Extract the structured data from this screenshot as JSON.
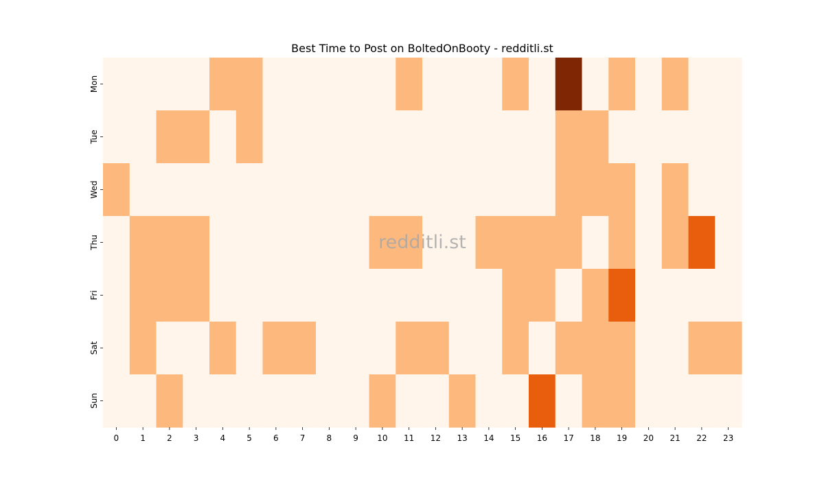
{
  "chart_data": {
    "type": "heatmap",
    "title": "Best Time to Post on BoltedOnBooty - redditli.st",
    "watermark": "redditli.st",
    "xlabel": "",
    "ylabel": "",
    "x": [
      "0",
      "1",
      "2",
      "3",
      "4",
      "5",
      "6",
      "7",
      "8",
      "9",
      "10",
      "11",
      "12",
      "13",
      "14",
      "15",
      "16",
      "17",
      "18",
      "19",
      "20",
      "21",
      "22",
      "23"
    ],
    "y": [
      "Mon",
      "Tue",
      "Wed",
      "Thu",
      "Fri",
      "Sat",
      "Sun"
    ],
    "values": [
      [
        0,
        0,
        0,
        0,
        1,
        1,
        0,
        0,
        0,
        0,
        0,
        1,
        0,
        0,
        0,
        1,
        0,
        4,
        0,
        1,
        0,
        1,
        0,
        0
      ],
      [
        0,
        0,
        1,
        1,
        0,
        1,
        0,
        0,
        0,
        0,
        0,
        0,
        0,
        0,
        0,
        0,
        0,
        1,
        1,
        0,
        0,
        0,
        0,
        0
      ],
      [
        1,
        0,
        0,
        0,
        0,
        0,
        0,
        0,
        0,
        0,
        0,
        0,
        0,
        0,
        0,
        0,
        0,
        1,
        1,
        1,
        0,
        1,
        0,
        0
      ],
      [
        0,
        1,
        1,
        1,
        0,
        0,
        0,
        0,
        0,
        0,
        1,
        1,
        0,
        0,
        1,
        1,
        1,
        1,
        0,
        1,
        0,
        1,
        2,
        0
      ],
      [
        0,
        1,
        1,
        1,
        0,
        0,
        0,
        0,
        0,
        0,
        0,
        0,
        0,
        0,
        0,
        1,
        1,
        0,
        1,
        2,
        0,
        0,
        0,
        0
      ],
      [
        0,
        1,
        0,
        0,
        1,
        0,
        1,
        1,
        0,
        0,
        0,
        1,
        1,
        0,
        0,
        1,
        0,
        1,
        1,
        1,
        0,
        0,
        1,
        1
      ],
      [
        0,
        0,
        1,
        0,
        0,
        0,
        0,
        0,
        0,
        0,
        1,
        0,
        0,
        1,
        0,
        0,
        2,
        0,
        1,
        1,
        0,
        0,
        0,
        0
      ]
    ],
    "colorscale": {
      "0": "#fff5eb",
      "1": "#fdb97d",
      "2": "#e95e0d",
      "4": "#7f2704"
    },
    "legend": "none",
    "grid": false
  }
}
